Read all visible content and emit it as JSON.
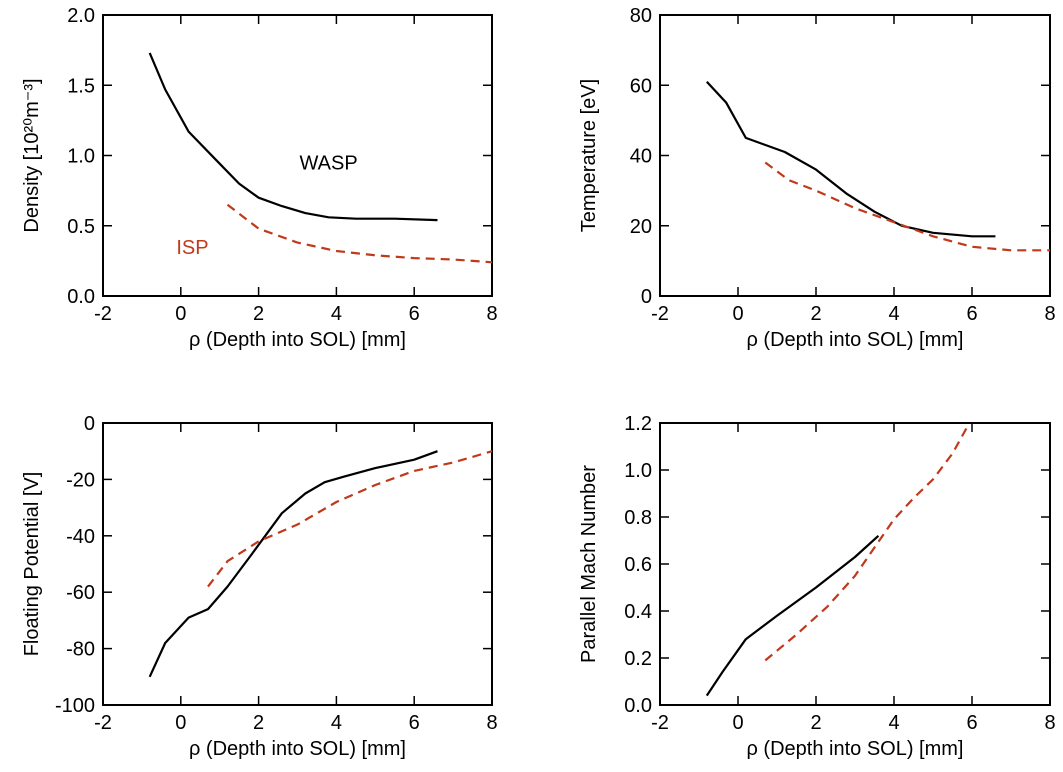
{
  "colors": {
    "wasp": "#000000",
    "isp": "#c0391b"
  },
  "chart_data": [
    {
      "type": "line",
      "xlabel": "ρ (Depth into SOL) [mm]",
      "ylabel": "Density [10²⁰m⁻³]",
      "xlim": [
        -2,
        8
      ],
      "ylim": [
        0.0,
        2.0
      ],
      "xticks": [
        "-2",
        "0",
        "2",
        "4",
        "6",
        "8"
      ],
      "yticks": [
        "0.0",
        "0.5",
        "1.0",
        "1.5",
        "2.0"
      ],
      "annotations": [
        {
          "text": "WASP",
          "color": "#000000",
          "x": 3.8,
          "y": 0.9
        },
        {
          "text": "ISP",
          "color": "#c0391b",
          "x": 0.3,
          "y": 0.3
        }
      ],
      "series": [
        {
          "style": "solid",
          "color": "#000000",
          "x": [
            -0.8,
            -0.4,
            0.2,
            0.9,
            1.5,
            2.0,
            2.6,
            3.2,
            3.8,
            4.5,
            5.5,
            6.6
          ],
          "y": [
            1.73,
            1.47,
            1.17,
            0.97,
            0.8,
            0.7,
            0.64,
            0.59,
            0.56,
            0.55,
            0.55,
            0.54
          ]
        },
        {
          "style": "dashed",
          "color": "#c0391b",
          "x": [
            1.2,
            2.0,
            3.0,
            4.0,
            5.0,
            6.0,
            7.0,
            8.0
          ],
          "y": [
            0.65,
            0.48,
            0.38,
            0.32,
            0.29,
            0.27,
            0.26,
            0.24
          ]
        }
      ]
    },
    {
      "type": "line",
      "xlabel": "ρ (Depth into SOL) [mm]",
      "ylabel": "Temperature [eV]",
      "xlim": [
        -2,
        8
      ],
      "ylim": [
        0,
        80
      ],
      "xticks": [
        "-2",
        "0",
        "2",
        "4",
        "6",
        "8"
      ],
      "yticks": [
        "0",
        "20",
        "40",
        "60",
        "80"
      ],
      "series": [
        {
          "style": "solid",
          "color": "#000000",
          "x": [
            -0.8,
            -0.3,
            0.2,
            1.2,
            2.0,
            2.8,
            3.5,
            4.2,
            5.0,
            6.0,
            6.6
          ],
          "y": [
            61,
            55,
            45,
            41,
            36,
            29,
            24,
            20,
            18,
            17,
            17
          ]
        },
        {
          "style": "dashed",
          "color": "#c0391b",
          "x": [
            0.7,
            1.3,
            2.0,
            3.0,
            4.0,
            5.0,
            6.0,
            7.0,
            8.0
          ],
          "y": [
            38,
            33,
            30,
            25,
            21,
            17,
            14,
            13,
            13
          ]
        }
      ]
    },
    {
      "type": "line",
      "xlabel": "ρ (Depth into SOL) [mm]",
      "ylabel": "Floating Potential [V]",
      "xlim": [
        -2,
        8
      ],
      "ylim": [
        -100,
        0
      ],
      "xticks": [
        "-2",
        "0",
        "2",
        "4",
        "6",
        "8"
      ],
      "yticks": [
        "-100",
        "-80",
        "-60",
        "-40",
        "-20",
        "0"
      ],
      "series": [
        {
          "style": "solid",
          "color": "#000000",
          "x": [
            -0.8,
            -0.4,
            0.2,
            0.7,
            1.2,
            1.8,
            2.6,
            3.2,
            3.7,
            4.2,
            5.0,
            6.0,
            6.6
          ],
          "y": [
            -90,
            -78,
            -69,
            -66,
            -58,
            -47,
            -32,
            -25,
            -21,
            -19,
            -16,
            -13,
            -10
          ]
        },
        {
          "style": "dashed",
          "color": "#c0391b",
          "x": [
            0.7,
            1.2,
            2.0,
            3.0,
            4.0,
            5.0,
            6.0,
            7.0,
            8.0
          ],
          "y": [
            -58,
            -49,
            -42,
            -36,
            -28,
            -22,
            -17,
            -14,
            -10
          ]
        }
      ]
    },
    {
      "type": "line",
      "xlabel": "ρ (Depth into SOL) [mm]",
      "ylabel": "Parallel Mach Number",
      "xlim": [
        -2,
        8
      ],
      "ylim": [
        0.0,
        1.2
      ],
      "xticks": [
        "-2",
        "0",
        "2",
        "4",
        "6",
        "8"
      ],
      "yticks": [
        "0.0",
        "0.2",
        "0.4",
        "0.6",
        "0.8",
        "1.0",
        "1.2"
      ],
      "series": [
        {
          "style": "solid",
          "color": "#000000",
          "x": [
            -0.8,
            -0.4,
            0.2,
            1.0,
            2.0,
            3.0,
            3.6
          ],
          "y": [
            0.04,
            0.14,
            0.28,
            0.38,
            0.5,
            0.63,
            0.72
          ]
        },
        {
          "style": "dashed",
          "color": "#c0391b",
          "x": [
            0.7,
            1.5,
            2.3,
            3.0,
            3.5,
            4.0,
            4.5,
            5.0,
            5.5,
            5.9
          ],
          "y": [
            0.19,
            0.3,
            0.42,
            0.55,
            0.67,
            0.79,
            0.88,
            0.96,
            1.07,
            1.19
          ]
        }
      ]
    }
  ]
}
